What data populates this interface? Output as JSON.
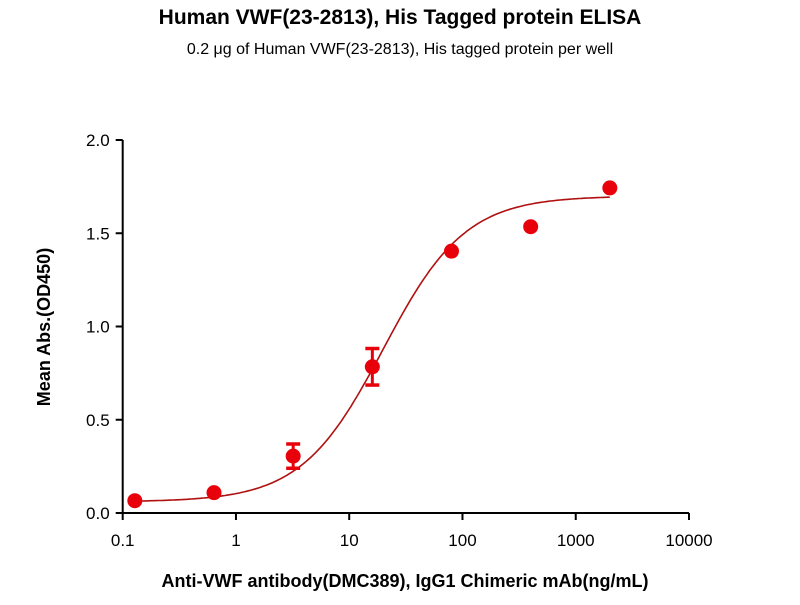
{
  "chart_data": {
    "type": "scatter",
    "title": "Human VWF(23-2813), His Tagged protein ELISA",
    "subtitle": "0.2 μg of Human VWF(23-2813), His tagged protein per well",
    "xlabel": "Anti-VWF antibody(DMC389), IgG1 Chimeric mAb(ng/mL)",
    "ylabel": "Mean Abs.(OD450)",
    "xscale": "log",
    "xlim": [
      0.1,
      10000
    ],
    "ylim": [
      0,
      2.0
    ],
    "xticks": [
      "0.1",
      "1",
      "10",
      "100",
      "1000",
      "10000"
    ],
    "yticks": [
      "0.0",
      "0.5",
      "1.0",
      "1.5",
      "2.0"
    ],
    "grid": false,
    "color": "#e8000b",
    "curve_color": "#b01010",
    "points": [
      {
        "x": 0.128,
        "y": 0.066,
        "err": 0
      },
      {
        "x": 0.64,
        "y": 0.109,
        "err": 0
      },
      {
        "x": 3.2,
        "y": 0.305,
        "err": 0.065
      },
      {
        "x": 16,
        "y": 0.784,
        "err": 0.098
      },
      {
        "x": 80,
        "y": 1.404,
        "err": 0
      },
      {
        "x": 400,
        "y": 1.535,
        "err": 0
      },
      {
        "x": 2000,
        "y": 1.743,
        "err": 0
      }
    ],
    "fit": {
      "model": "4PL",
      "bottom": 0.06,
      "top": 1.7,
      "ec50": 20,
      "hill": 1.2
    }
  }
}
